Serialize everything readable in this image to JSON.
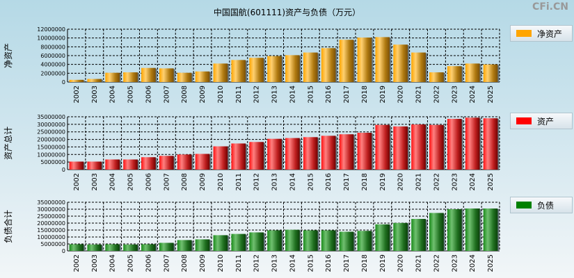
{
  "title": "中国国航(601111)资产与负债（万元）",
  "watermark": "CFi.CN",
  "colors": {
    "equity": "#ffa500",
    "assets": "#ff0000",
    "liabilities": "#008000"
  },
  "chart_data": [
    {
      "type": "bar",
      "title": "中国国航(601111)资产与负债（万元）",
      "ylabel": "净资产",
      "legend": "净资产",
      "legend_position": "right",
      "categories": [
        "2002",
        "2003",
        "2004",
        "2005",
        "2006",
        "2007",
        "2008",
        "2009",
        "2010",
        "2011",
        "2012",
        "2013",
        "2014",
        "2015",
        "2016",
        "2017",
        "2018",
        "2019",
        "2020",
        "2021",
        "2022",
        "2023",
        "2024",
        "2025"
      ],
      "values": [
        500000,
        700000,
        2100000,
        2200000,
        3200000,
        3100000,
        2100000,
        2400000,
        4200000,
        5000000,
        5500000,
        5900000,
        6100000,
        6700000,
        7700000,
        9600000,
        10100000,
        10200000,
        8500000,
        6700000,
        2200000,
        3600000,
        4200000,
        4000000
      ],
      "ylim": [
        0,
        12000000
      ],
      "yticks": [
        "0",
        "2000000",
        "4000000",
        "6000000",
        "8000000",
        "10000000",
        "12000000"
      ],
      "grid": true
    },
    {
      "type": "bar",
      "ylabel": "资产总计",
      "legend": "资产",
      "legend_position": "right",
      "categories": [
        "2002",
        "2003",
        "2004",
        "2005",
        "2006",
        "2007",
        "2008",
        "2009",
        "2010",
        "2011",
        "2012",
        "2013",
        "2014",
        "2015",
        "2016",
        "2017",
        "2018",
        "2019",
        "2020",
        "2021",
        "2022",
        "2023",
        "2024",
        "2025"
      ],
      "values": [
        5300000,
        5300000,
        6700000,
        6700000,
        8200000,
        9100000,
        10000000,
        10400000,
        15400000,
        17300000,
        18300000,
        20400000,
        20900000,
        21500000,
        22400000,
        23400000,
        24400000,
        29600000,
        28600000,
        29900000,
        29600000,
        33600000,
        34400000,
        34000000
      ],
      "ylim": [
        0,
        35000000
      ],
      "yticks": [
        "0",
        "5000000",
        "10000000",
        "15000000",
        "20000000",
        "25000000",
        "30000000",
        "35000000"
      ],
      "grid": true
    },
    {
      "type": "bar",
      "ylabel": "负债合计",
      "legend": "负债",
      "legend_position": "right",
      "categories": [
        "2002",
        "2003",
        "2004",
        "2005",
        "2006",
        "2007",
        "2008",
        "2009",
        "2010",
        "2011",
        "2012",
        "2013",
        "2014",
        "2015",
        "2016",
        "2017",
        "2018",
        "2019",
        "2020",
        "2021",
        "2022",
        "2023",
        "2024",
        "2025"
      ],
      "values": [
        4800000,
        4600000,
        4800000,
        4600000,
        4800000,
        5800000,
        7800000,
        8300000,
        11300000,
        12200000,
        13300000,
        14800000,
        15200000,
        14800000,
        14800000,
        13800000,
        14400000,
        19100000,
        20100000,
        23000000,
        27300000,
        30000000,
        30500000,
        30500000
      ],
      "ylim": [
        0,
        35000000
      ],
      "yticks": [
        "0",
        "5000000",
        "10000000",
        "15000000",
        "20000000",
        "25000000",
        "30000000",
        "35000000"
      ],
      "grid": true
    }
  ]
}
